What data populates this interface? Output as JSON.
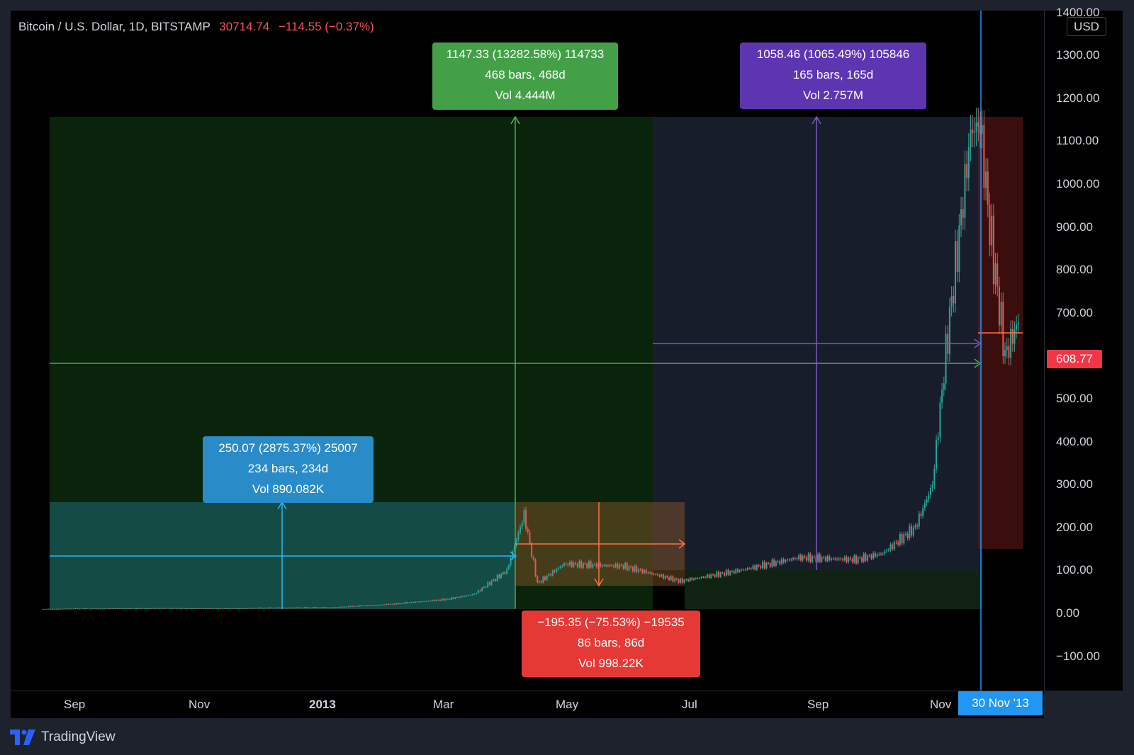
{
  "header": {
    "symbol": "Bitcoin / U.S. Dollar, 1D, BITSTAMP",
    "price": "30714.74",
    "change": "−114.55 (−0.37%)"
  },
  "currency": "USD",
  "price_scale": [
    "1400.00",
    "1300.00",
    "1200.00",
    "1100.00",
    "1000.00",
    "900.00",
    "800.00",
    "700.00",
    "600.00",
    "500.00",
    "400.00",
    "300.00",
    "200.00",
    "100.00",
    "0.00",
    "−100.00"
  ],
  "last_price": "608.77",
  "time_scale": [
    "Sep",
    "Nov",
    "2013",
    "Mar",
    "May",
    "Jul",
    "Sep",
    "Nov"
  ],
  "crosshair_time": "30 Nov '13",
  "measurements": [
    {
      "id": "green",
      "line1": "1147.33 (13282.58%) 114733",
      "line2": "468 bars, 468d",
      "line3": "Vol 4.444M",
      "color": "#43a047"
    },
    {
      "id": "purple",
      "line1": "1058.46 (1065.49%) 105846",
      "line2": "165 bars, 165d",
      "line3": "Vol 2.757M",
      "color": "#5e35b1"
    },
    {
      "id": "blue",
      "line1": "250.07 (2875.37%) 25007",
      "line2": "234 bars, 234d",
      "line3": "Vol 890.082K",
      "color": "#2a8bc9"
    },
    {
      "id": "red",
      "line1": "−195.35 (−75.53%) −19535",
      "line2": "86 bars, 86d",
      "line3": "Vol 998.22K",
      "color": "#e53935"
    }
  ],
  "brand": "TradingView",
  "chart_data": {
    "type": "line",
    "title": "Bitcoin / U.S. Dollar, 1D, BITSTAMP",
    "ylim": [
      -100,
      1400
    ],
    "x": [
      "2012-08-01",
      "2012-09-01",
      "2012-10-01",
      "2012-11-01",
      "2012-12-01",
      "2013-01-01",
      "2013-02-01",
      "2013-03-01",
      "2013-03-15",
      "2013-04-01",
      "2013-04-10",
      "2013-04-17",
      "2013-05-01",
      "2013-06-01",
      "2013-07-01",
      "2013-08-01",
      "2013-09-01",
      "2013-10-01",
      "2013-10-15",
      "2013-11-01",
      "2013-11-10",
      "2013-11-18",
      "2013-11-30",
      "2013-12-05",
      "2013-12-10",
      "2013-12-18",
      "2013-12-25"
    ],
    "series": [
      {
        "values": [
          10,
          11,
          12,
          11,
          13,
          14,
          22,
          33,
          45,
          100,
          230,
          70,
          115,
          110,
          75,
          100,
          130,
          125,
          140,
          200,
          300,
          650,
          1120,
          1140,
          900,
          600,
          680
        ]
      }
    ]
  }
}
